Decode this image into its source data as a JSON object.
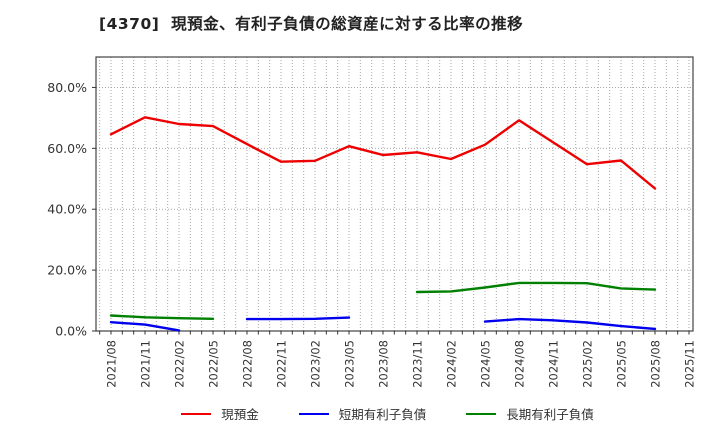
{
  "chart_data": {
    "type": "line",
    "title": "[4370]  現預金、有利子負債の総資産に対する比率の推移",
    "categories": [
      "2021/08",
      "2021/11",
      "2022/02",
      "2022/05",
      "2022/08",
      "2022/11",
      "2023/02",
      "2023/05",
      "2023/08",
      "2023/11",
      "2024/02",
      "2024/05",
      "2024/08",
      "2024/11",
      "2025/02",
      "2025/05",
      "2025/08",
      "2025/11"
    ],
    "series": [
      {
        "name": "現預金",
        "color": "#ee0000",
        "values": [
          64.6,
          70.2,
          68.0,
          67.3,
          61.4,
          55.6,
          55.9,
          60.7,
          57.8,
          58.7,
          56.5,
          61.2,
          69.2,
          62.0,
          54.8,
          56.0,
          46.8,
          null
        ]
      },
      {
        "name": "短期有利子負債",
        "color": "#0000ee",
        "values": [
          2.9,
          2.1,
          0.2,
          null,
          3.9,
          3.9,
          4.0,
          4.4,
          null,
          null,
          null,
          3.1,
          3.9,
          3.5,
          2.8,
          1.6,
          0.7,
          null
        ]
      },
      {
        "name": "長期有利子負債",
        "color": "#008000",
        "values": [
          5.1,
          4.5,
          4.2,
          4.0,
          null,
          null,
          null,
          null,
          null,
          12.8,
          13.0,
          14.3,
          15.8,
          15.8,
          15.7,
          14.0,
          13.6,
          null
        ]
      }
    ],
    "xlabel": "",
    "ylabel": "",
    "ylim": [
      0,
      90
    ],
    "yticks": [
      0,
      20,
      40,
      60,
      80
    ],
    "ytick_labels": [
      "0.0%",
      "20.0%",
      "40.0%",
      "60.0%",
      "80.0%"
    ],
    "grid": true,
    "legend_position": "bottom",
    "background": "#ffffff"
  }
}
